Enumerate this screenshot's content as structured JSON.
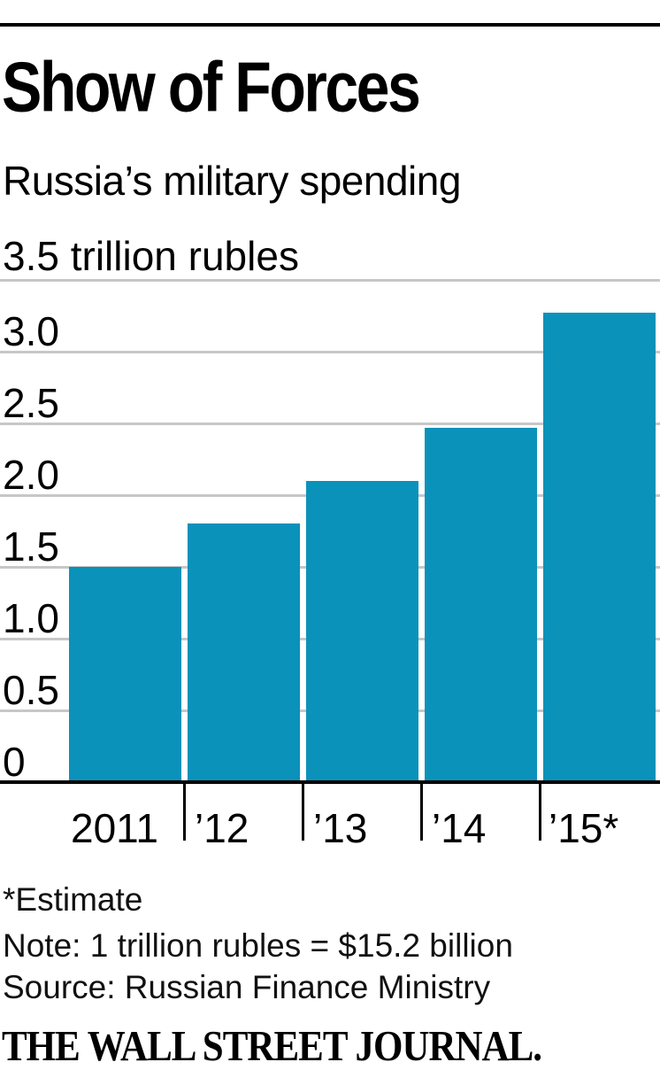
{
  "header": {
    "title": "Show of Forces",
    "subtitle": "Russia’s military spending"
  },
  "chart_data": {
    "type": "bar",
    "title": "Show of Forces",
    "subtitle": "Russia’s military spending",
    "unit_label": "3.5 trillion rubles",
    "ylabel": "trillion rubles",
    "xlabel": "",
    "categories": [
      "2011",
      "’12",
      "’13",
      "’14",
      "’15*"
    ],
    "values": [
      1.5,
      1.8,
      2.1,
      2.47,
      3.27
    ],
    "ylim": [
      0,
      3.5
    ],
    "ytick_step": 0.5,
    "ytick_labels": [
      "0",
      "0.5",
      "1.0",
      "1.5",
      "2.0",
      "2.5",
      "3.0"
    ],
    "grid": "on",
    "legend": "none",
    "bar_color": "#0a92ba",
    "grid_color": "#c7c7c7",
    "axis_color": "#000000",
    "annotation": "*Estimate"
  },
  "footer": {
    "estimate": "*Estimate",
    "note": "Note: 1 trillion rubles = $15.2 billion",
    "source": "Source: Russian Finance Ministry",
    "brand": "THE WALL STREET JOURNAL."
  }
}
